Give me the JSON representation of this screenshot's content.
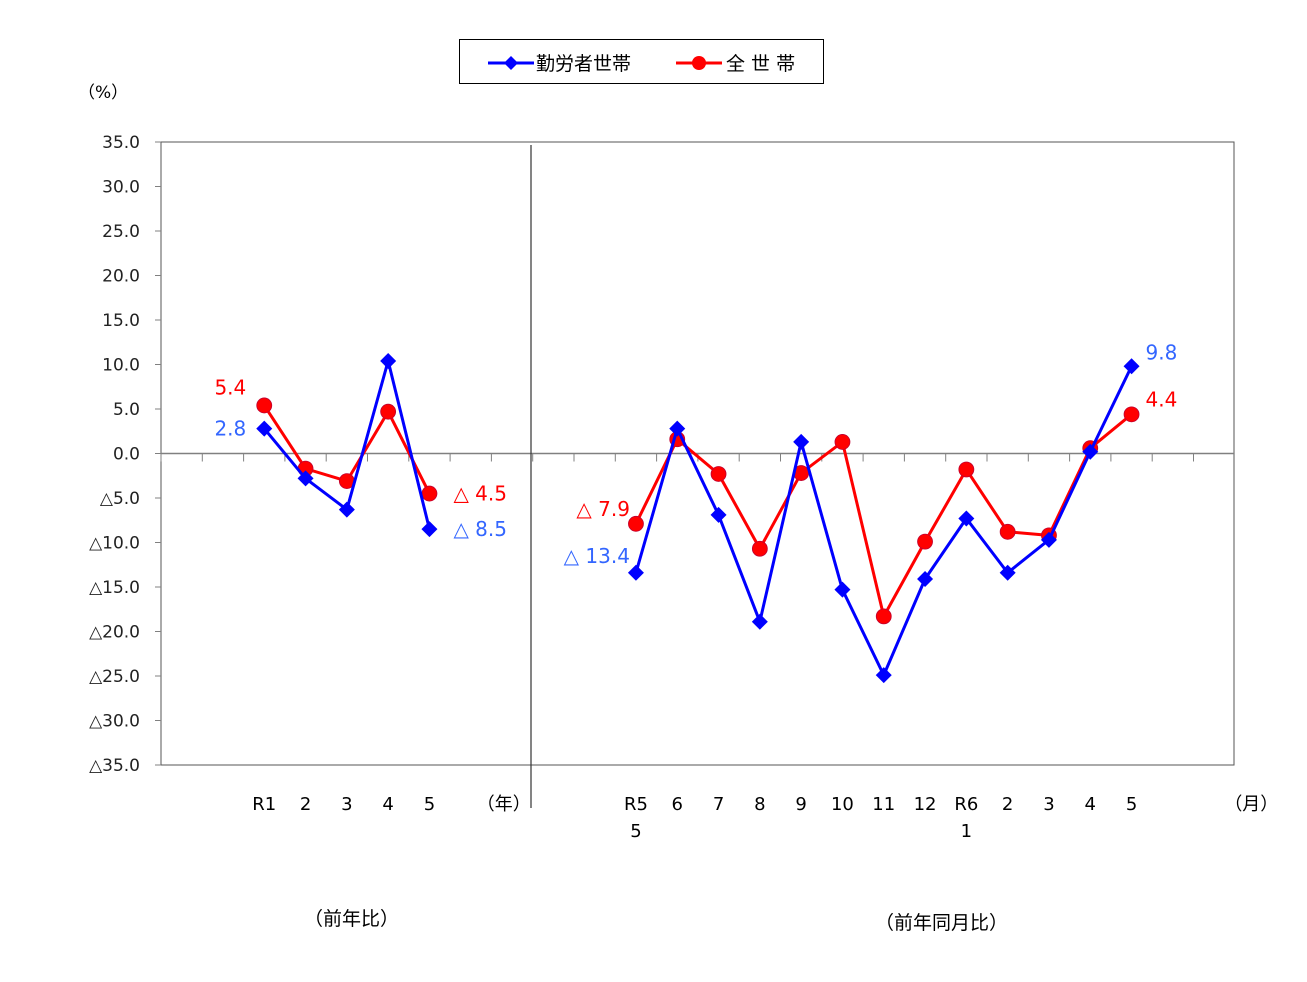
{
  "legend": {
    "workers_label": "勤労者世帯",
    "all_label": "全 世 帯"
  },
  "unit_label": "（%）",
  "captions": {
    "annual": "（前年比）",
    "monthly": "（前年同月比）",
    "annual_unit": "（年）",
    "monthly_unit": "（月）"
  },
  "colors": {
    "workers": "#0000ff",
    "all": "#ff0000",
    "workers_label": "#3366ff",
    "all_label": "#ff0000",
    "axis": "#808080"
  },
  "chart_data": {
    "type": "line",
    "title": "",
    "ylabel": "（%）",
    "ylim": [
      -35,
      35
    ],
    "yticks": [
      35,
      30,
      25,
      20,
      15,
      10,
      5,
      0,
      -5,
      -10,
      -15,
      -20,
      -25,
      -30,
      -35
    ],
    "ytick_labels": [
      "35.0",
      "30.0",
      "25.0",
      "20.0",
      "15.0",
      "10.0",
      "5.0",
      "0.0",
      "△5.0",
      "△10.0",
      "△15.0",
      "△20.0",
      "△25.0",
      "△30.0",
      "△35.0"
    ],
    "grid": false,
    "legend_position": "top",
    "panels": [
      {
        "name": "annual",
        "caption": "（前年比）",
        "xunit": "（年）",
        "categories": [
          "R1",
          "2",
          "3",
          "4",
          "5"
        ],
        "series": [
          {
            "name": "勤労者世帯",
            "values": [
              2.8,
              -2.8,
              -6.3,
              10.4,
              -8.5
            ]
          },
          {
            "name": "全 世 帯",
            "values": [
              5.4,
              -1.7,
              -3.1,
              4.7,
              -4.5
            ]
          }
        ],
        "annotations": [
          {
            "text": "5.4",
            "series": "全 世 帯",
            "index": 0
          },
          {
            "text": "2.8",
            "series": "勤労者世帯",
            "index": 0
          },
          {
            "text": "△ 4.5",
            "series": "全 世 帯",
            "index": 4
          },
          {
            "text": "△ 8.5",
            "series": "勤労者世帯",
            "index": 4
          }
        ]
      },
      {
        "name": "monthly",
        "caption": "（前年同月比）",
        "xunit": "（月）",
        "categories": [
          "R5\n5",
          "6",
          "7",
          "8",
          "9",
          "10",
          "11",
          "12",
          "R6\n1",
          "2",
          "3",
          "4",
          "5"
        ],
        "series": [
          {
            "name": "勤労者世帯",
            "values": [
              -13.4,
              2.8,
              -6.9,
              -18.9,
              1.3,
              -15.3,
              -24.9,
              -14.1,
              -7.3,
              -13.4,
              -9.7,
              0.2,
              9.8
            ]
          },
          {
            "name": "全 世 帯",
            "values": [
              -7.9,
              1.6,
              -2.3,
              -10.7,
              -2.2,
              1.3,
              -18.3,
              -9.9,
              -1.8,
              -8.8,
              -9.2,
              0.6,
              4.4
            ]
          }
        ],
        "annotations": [
          {
            "text": "△ 7.9",
            "series": "全 世 帯",
            "index": 0
          },
          {
            "text": "△ 13.4",
            "series": "勤労者世帯",
            "index": 0
          },
          {
            "text": "9.8",
            "series": "勤労者世帯",
            "index": 12
          },
          {
            "text": "4.4",
            "series": "全 世 帯",
            "index": 12
          }
        ]
      }
    ]
  }
}
